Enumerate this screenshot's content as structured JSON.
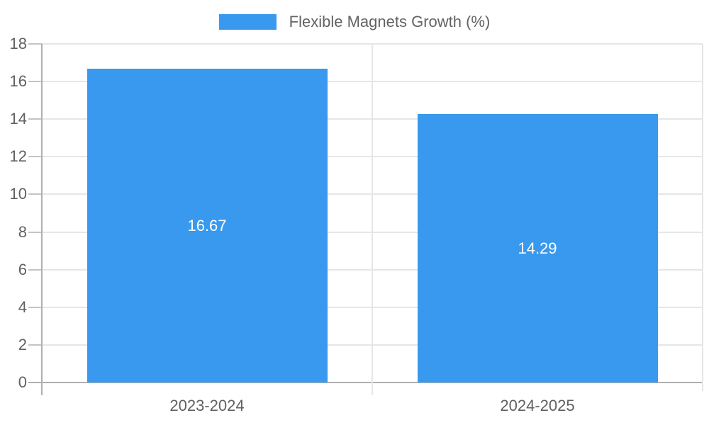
{
  "legend": {
    "label": "Flexible Magnets Growth (%)",
    "swatch_color": "#3899ee"
  },
  "chart_data": {
    "type": "bar",
    "title": "Flexible Magnets Growth (%)",
    "categories": [
      "2023-2024",
      "2024-2025"
    ],
    "values": [
      16.67,
      14.29
    ],
    "value_labels": [
      "16.67",
      "14.29"
    ],
    "xlabel": "",
    "ylabel": "",
    "ylim": [
      0,
      18
    ],
    "ytick_step": 2,
    "ytick_labels": [
      "0",
      "2",
      "4",
      "6",
      "8",
      "10",
      "12",
      "14",
      "16",
      "18"
    ],
    "grid": true,
    "legend_position": "top-center",
    "bar_color": "#3899ee",
    "value_label_position": "inside-center"
  },
  "colors": {
    "bar": "#3899ee",
    "axis_text": "#616161",
    "legend_text": "#636363",
    "gridline": "#e6e6e6",
    "axis_line": "#b0b0b0",
    "tick_stub": "#c4c4c4",
    "bar_value_text": "#ffffff",
    "background": "#ffffff"
  }
}
